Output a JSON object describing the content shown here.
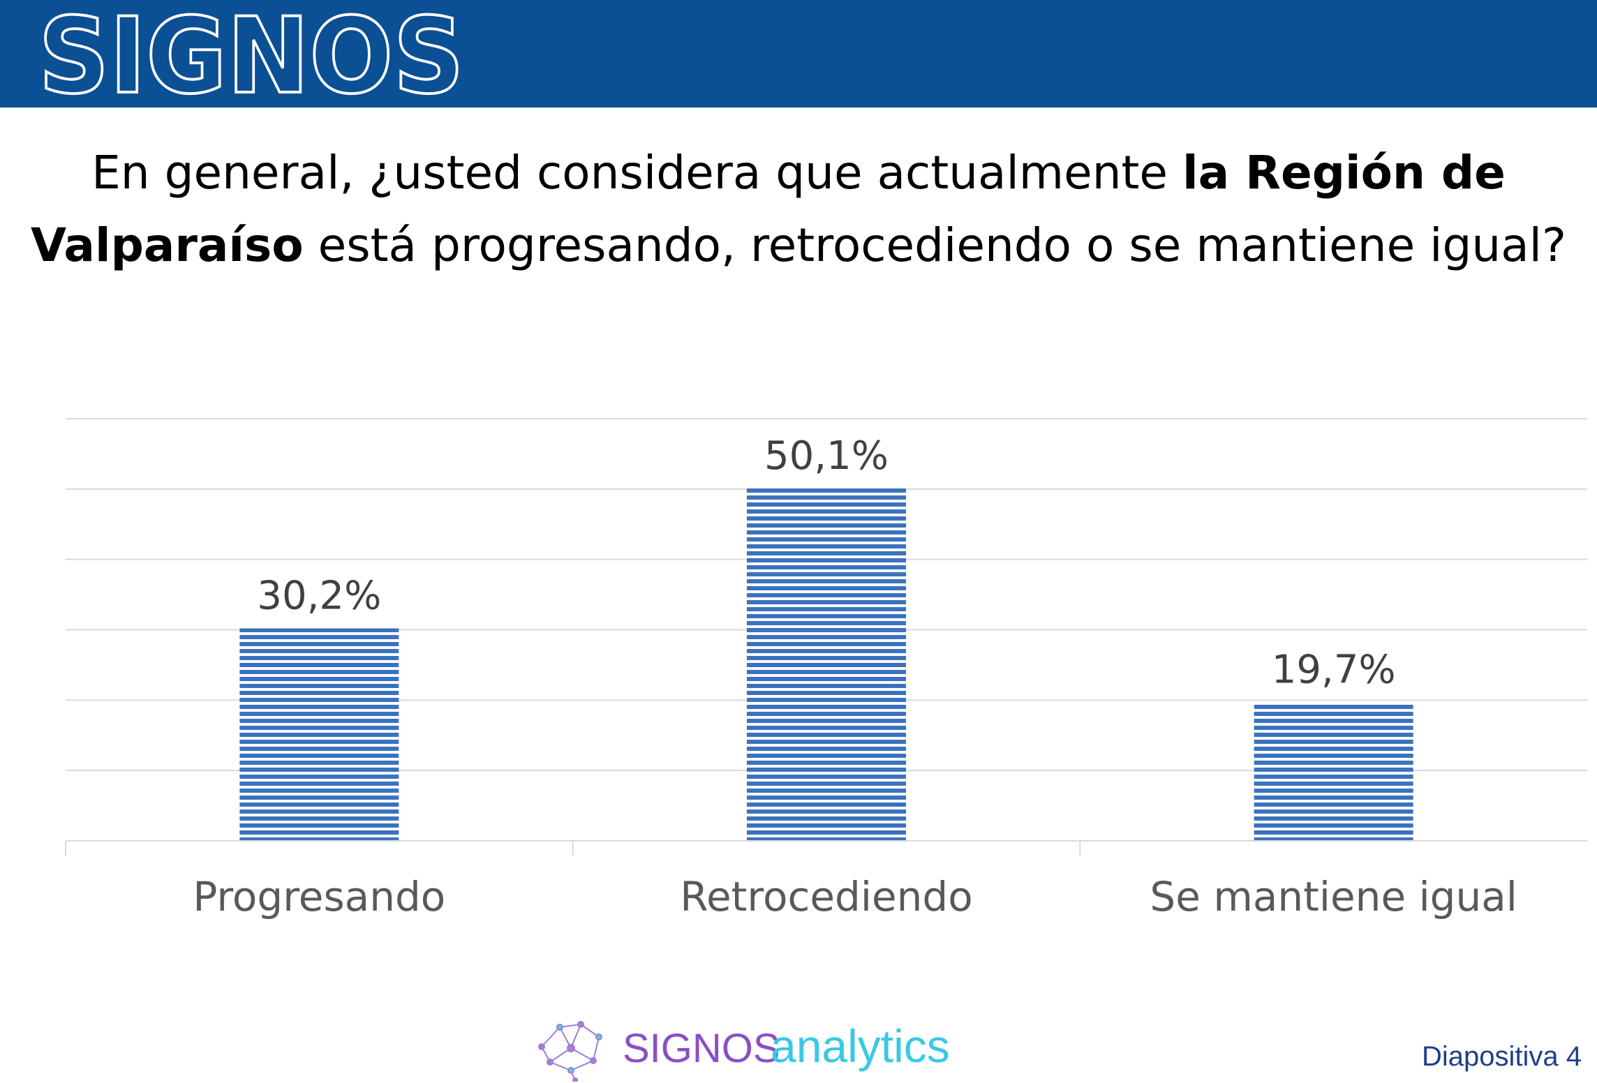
{
  "header": {
    "brand": "SIGNOS",
    "color": "#0b4f94"
  },
  "question": {
    "part1": "En general, ¿usted considera que actualmente ",
    "bold1": "la Región de Valparaíso",
    "part2": " está progresando,  retrocediendo o se mantiene igual?"
  },
  "chart_data": {
    "type": "bar",
    "categories": [
      "Progresando",
      "Retrocediendo",
      "Se mantiene igual"
    ],
    "values": [
      30.2,
      50.1,
      19.7
    ],
    "data_labels": [
      "30,2%",
      "50,1%",
      "19,7%"
    ],
    "title": "",
    "xlabel": "",
    "ylabel": "",
    "ylim": [
      0,
      60
    ],
    "gridlines": true,
    "gridline_step": 10,
    "legend": "none",
    "bar_color": "#3a72c0",
    "bar_pattern": "horizontal-stripes"
  },
  "footer": {
    "logo_part1": "SIGNOS",
    "logo_part2": "analytics",
    "logo_part1_color": "#8a4fc4",
    "logo_part2_color": "#38c9e6",
    "slide_label": "Diapositiva 4"
  }
}
